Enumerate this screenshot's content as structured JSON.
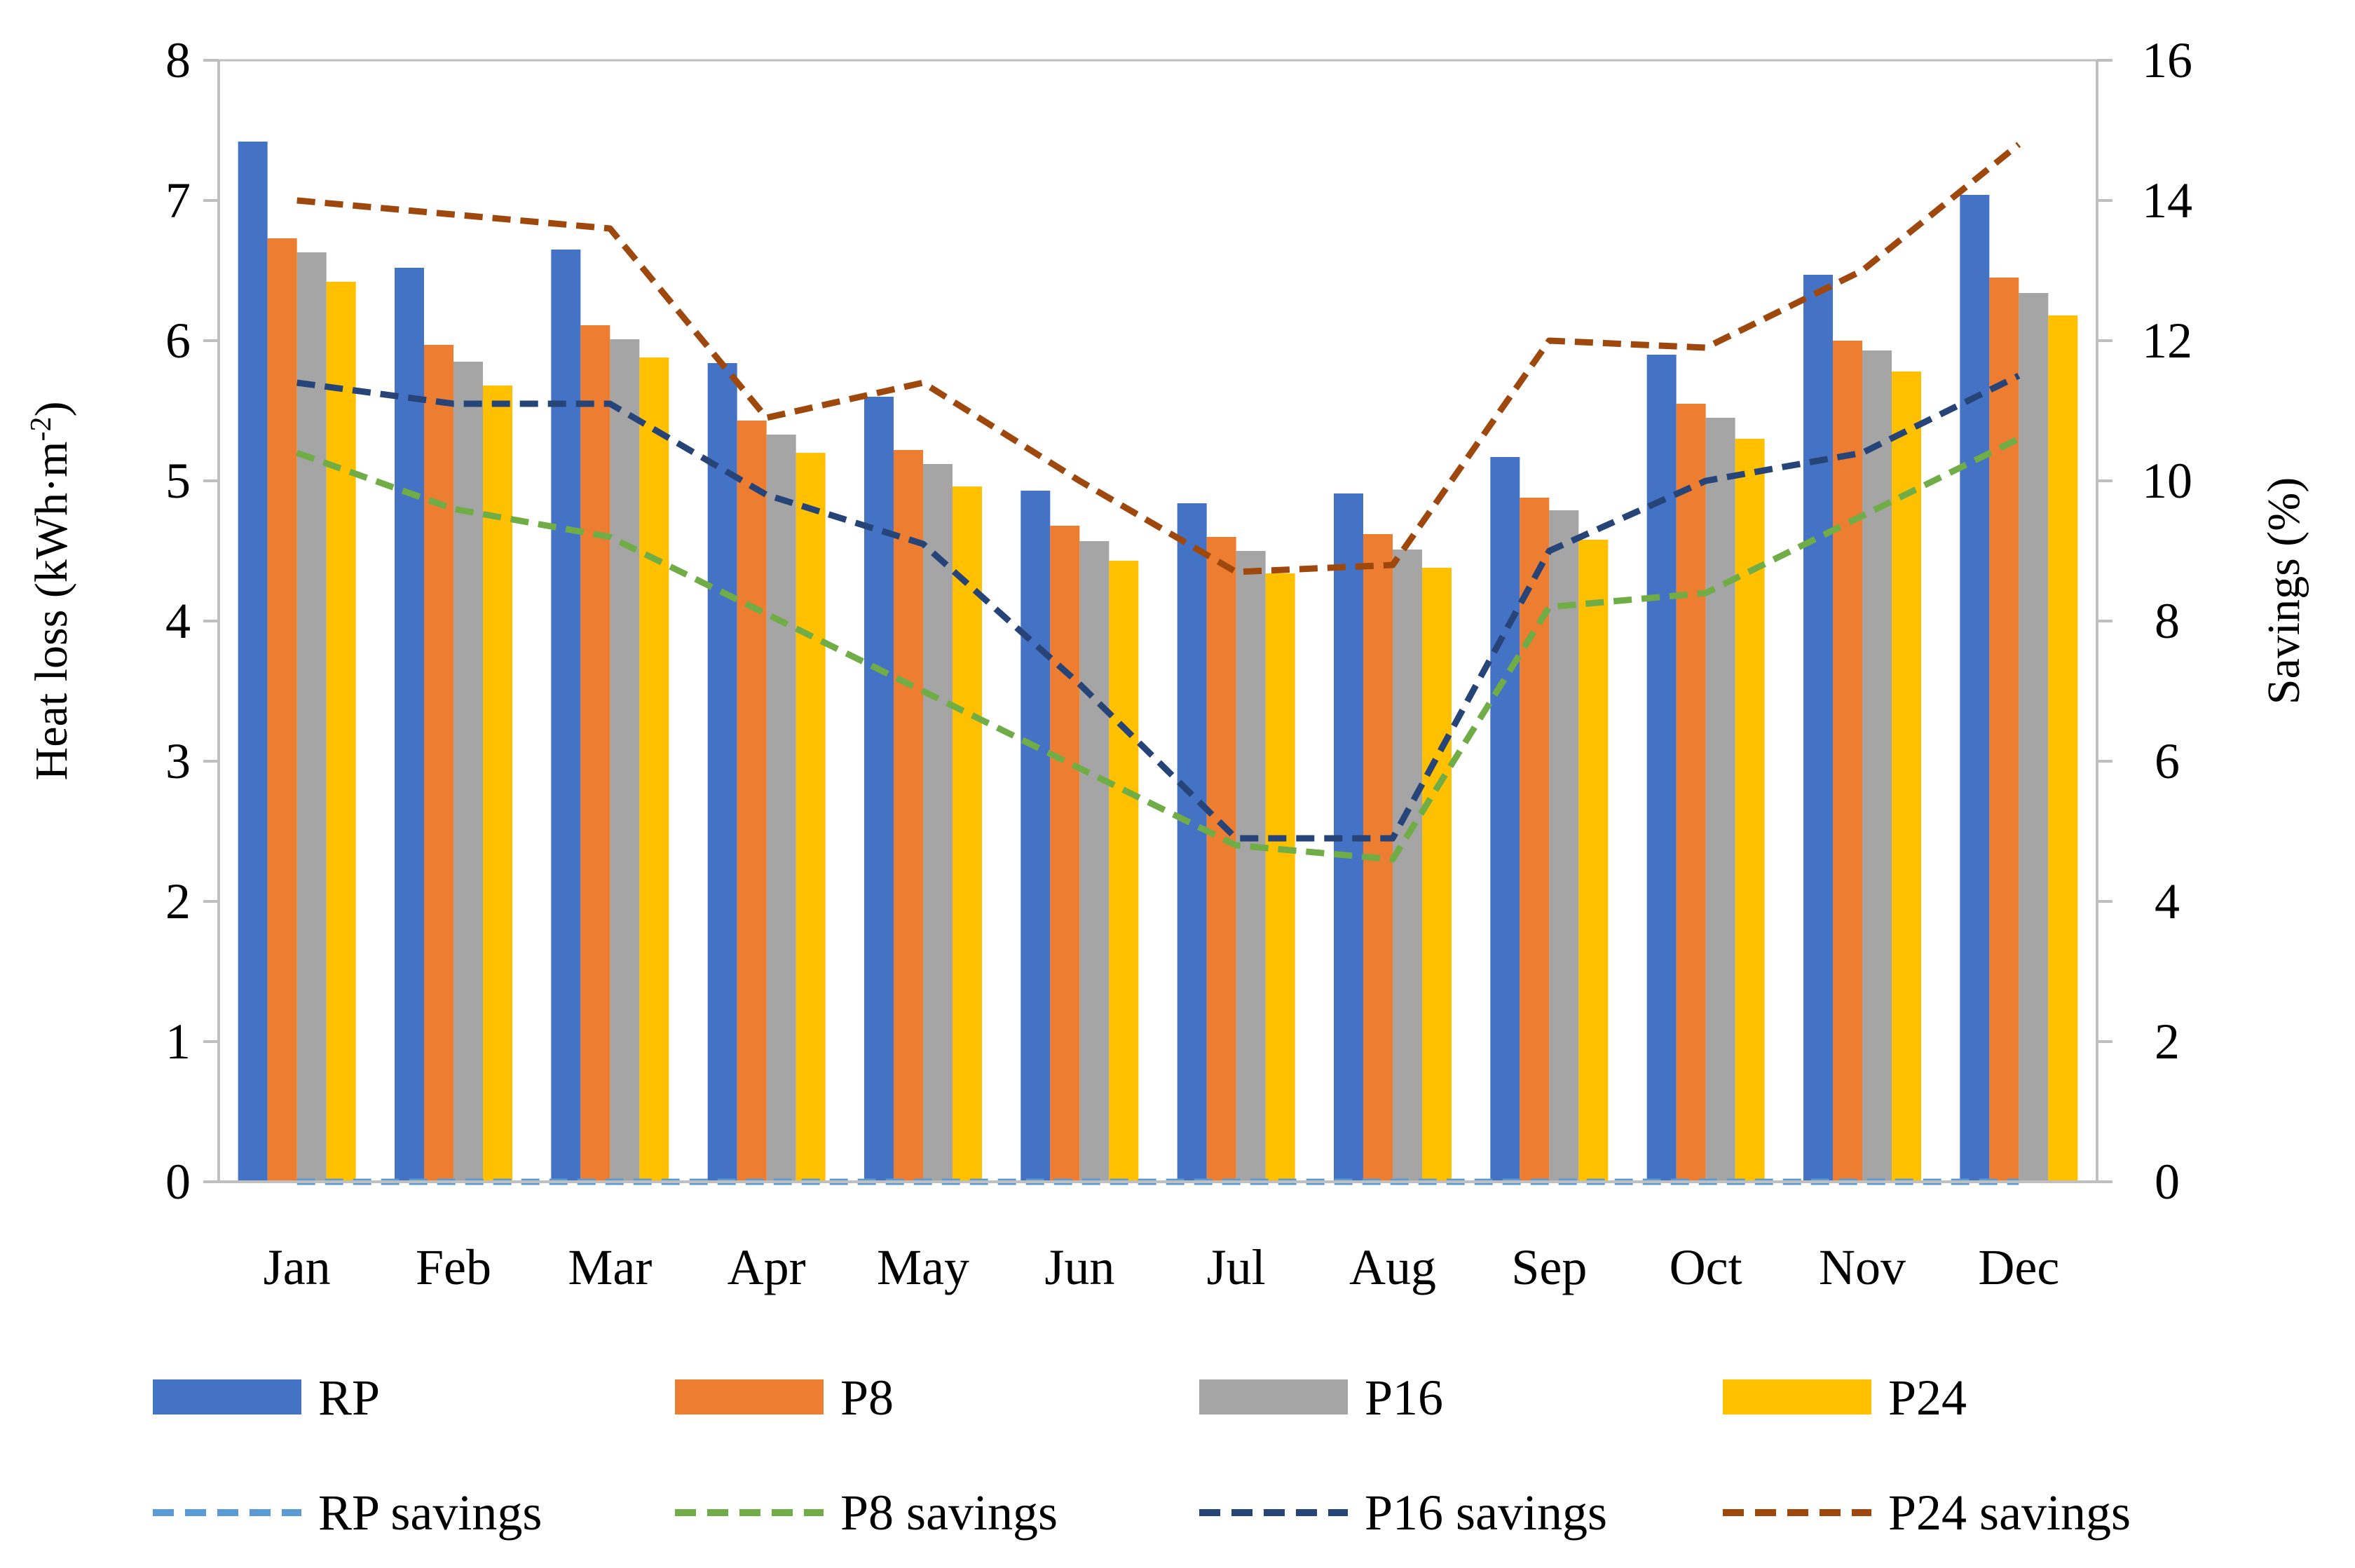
{
  "chart_data": {
    "type": "bar",
    "title": "",
    "categories": [
      "Jan",
      "Feb",
      "Mar",
      "Apr",
      "May",
      "Jun",
      "Jul",
      "Aug",
      "Sep",
      "Oct",
      "Nov",
      "Dec"
    ],
    "ylabel": "Heat loss (kWh·m",
    "ylabel_sup": "-2",
    "ylabel_close": ")",
    "ylim": [
      0,
      8
    ],
    "yticks": [
      "0",
      "1",
      "2",
      "3",
      "4",
      "5",
      "6",
      "7",
      "8"
    ],
    "y2label": "Savings (%)",
    "y2lim": [
      0,
      16
    ],
    "y2ticks": [
      "0",
      "2",
      "4",
      "6",
      "8",
      "10",
      "12",
      "14",
      "16"
    ],
    "series": [
      {
        "name": "RP",
        "color": "#4472C4",
        "values": [
          7.42,
          6.52,
          6.65,
          5.84,
          5.6,
          4.93,
          4.84,
          4.91,
          5.17,
          5.9,
          6.47,
          7.04
        ]
      },
      {
        "name": "P8",
        "color": "#ED7D31",
        "values": [
          6.73,
          5.97,
          6.11,
          5.43,
          5.22,
          4.68,
          4.6,
          4.62,
          4.88,
          5.55,
          6.0,
          6.45
        ]
      },
      {
        "name": "P16",
        "color": "#A5A5A5",
        "values": [
          6.63,
          5.85,
          6.01,
          5.33,
          5.12,
          4.57,
          4.5,
          4.51,
          4.79,
          5.45,
          5.93,
          6.34
        ]
      },
      {
        "name": "P24",
        "color": "#FFC000",
        "values": [
          6.42,
          5.68,
          5.88,
          5.2,
          4.96,
          4.43,
          4.34,
          4.38,
          4.58,
          5.3,
          5.78,
          6.18
        ]
      }
    ],
    "line_series": [
      {
        "name": "RP savings",
        "color": "#5B9BD5",
        "axis": "secondary",
        "values": [
          0,
          0,
          0,
          0,
          0,
          0,
          0,
          0,
          0,
          0,
          0,
          0
        ]
      },
      {
        "name": "P8 savings",
        "color": "#70AD47",
        "axis": "secondary",
        "values": [
          10.4,
          9.6,
          9.2,
          8.1,
          7.0,
          5.9,
          4.8,
          4.6,
          8.2,
          8.4,
          9.5,
          10.6
        ]
      },
      {
        "name": "P16 savings",
        "color": "#264478",
        "axis": "secondary",
        "values": [
          11.4,
          11.1,
          11.1,
          9.8,
          9.1,
          7.1,
          4.9,
          4.9,
          9.0,
          10.0,
          10.4,
          11.5
        ]
      },
      {
        "name": "P24 savings",
        "color": "#9E480E",
        "axis": "secondary",
        "values": [
          14.0,
          13.8,
          13.6,
          10.9,
          11.4,
          10.0,
          8.7,
          8.8,
          12.0,
          11.9,
          13.0,
          14.8
        ]
      }
    ],
    "legend_position": "bottom"
  }
}
